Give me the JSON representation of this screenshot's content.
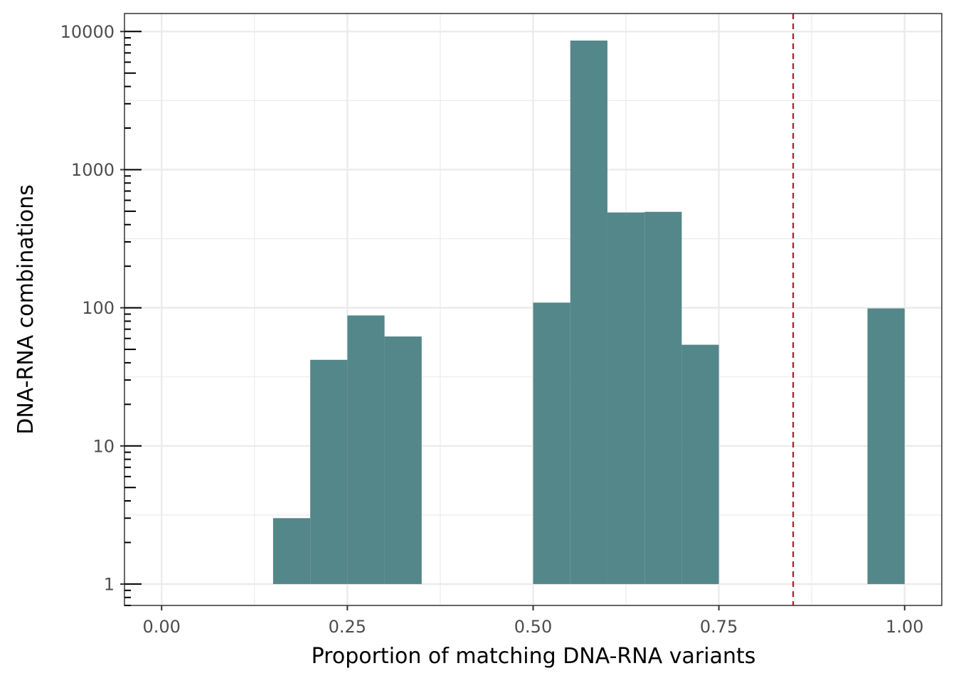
{
  "chart_data": {
    "type": "bar",
    "subtype": "histogram",
    "title": "",
    "xlabel": "Proportion of matching DNA-RNA variants",
    "ylabel": "DNA-RNA combinations",
    "xlim": [
      -0.05,
      1.05
    ],
    "ylim": [
      0.7,
      13500
    ],
    "y_scale": "log10",
    "bin_width": 0.05,
    "x_ticks": [
      {
        "value": 0.0,
        "label": "0.00"
      },
      {
        "value": 0.25,
        "label": "0.25"
      },
      {
        "value": 0.5,
        "label": "0.50"
      },
      {
        "value": 0.75,
        "label": "0.75"
      },
      {
        "value": 1.0,
        "label": "1.00"
      }
    ],
    "x_minor_gridlines": [
      0.125,
      0.375,
      0.625,
      0.875
    ],
    "y_ticks": [
      {
        "value": 1,
        "label": "1"
      },
      {
        "value": 10,
        "label": "10"
      },
      {
        "value": 100,
        "label": "100"
      },
      {
        "value": 1000,
        "label": "1000"
      },
      {
        "value": 10000,
        "label": "10000"
      }
    ],
    "bins": [
      {
        "x_start": 0.15,
        "x_end": 0.2,
        "count": 3
      },
      {
        "x_start": 0.2,
        "x_end": 0.25,
        "count": 42
      },
      {
        "x_start": 0.25,
        "x_end": 0.3,
        "count": 88
      },
      {
        "x_start": 0.3,
        "x_end": 0.35,
        "count": 62
      },
      {
        "x_start": 0.5,
        "x_end": 0.55,
        "count": 109
      },
      {
        "x_start": 0.55,
        "x_end": 0.6,
        "count": 8600
      },
      {
        "x_start": 0.6,
        "x_end": 0.65,
        "count": 490
      },
      {
        "x_start": 0.65,
        "x_end": 0.7,
        "count": 495
      },
      {
        "x_start": 0.7,
        "x_end": 0.75,
        "count": 54
      },
      {
        "x_start": 0.95,
        "x_end": 1.0,
        "count": 99
      }
    ],
    "reference_line": {
      "x": 0.85,
      "style": "dashed",
      "color": "#b2182b"
    },
    "bar_color": "#53878a",
    "panel_border_color": "#333333",
    "grid": true,
    "grid_color": "#ebebeb",
    "legend": "none"
  }
}
